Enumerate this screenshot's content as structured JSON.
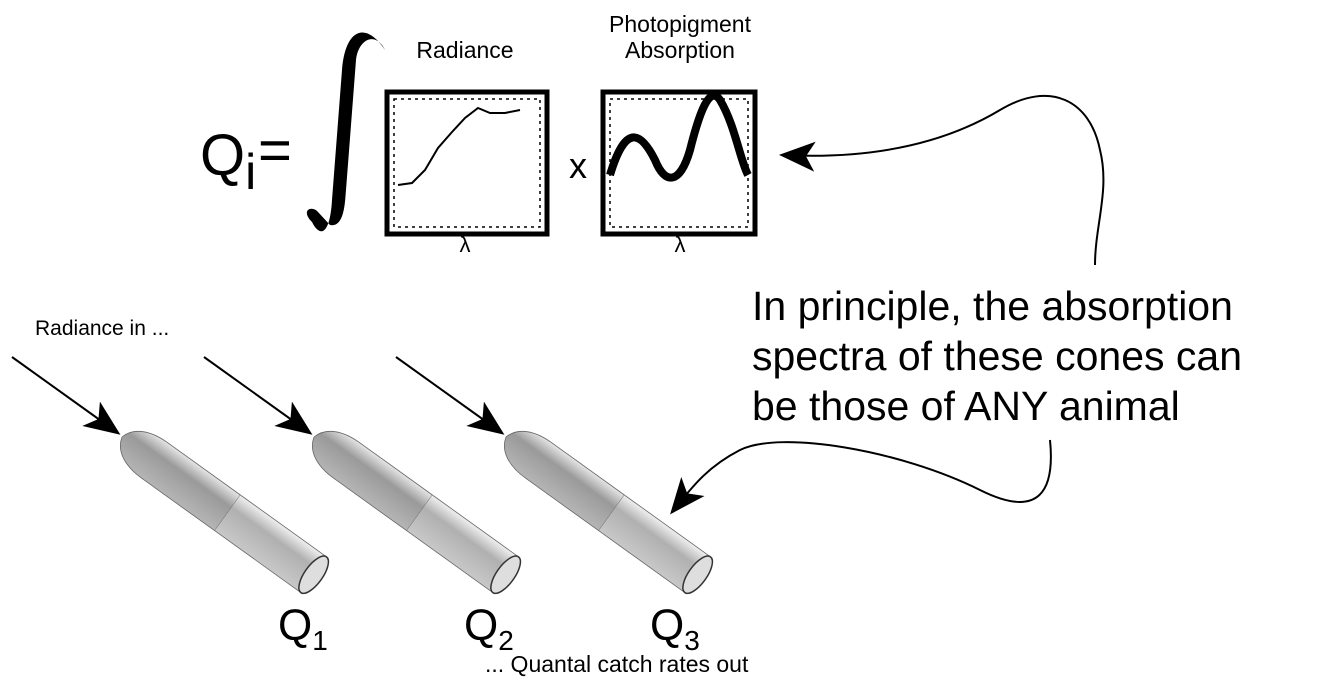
{
  "equation": {
    "lhs": "Q",
    "lhs_subscript": "i",
    "equals": "=",
    "operator": "x",
    "panels": [
      {
        "title": [
          "Radiance"
        ],
        "axis": "λ"
      },
      {
        "title": [
          "Photopigment",
          "Absorption"
        ],
        "axis": "λ"
      }
    ]
  },
  "note": {
    "lines": [
      "In principle, the absorption",
      "spectra of these cones can",
      "be those of ANY animal"
    ]
  },
  "cones": {
    "input_label": "Radiance in ...",
    "outputs": [
      {
        "symbol": "Q",
        "subscript": "1"
      },
      {
        "symbol": "Q",
        "subscript": "2"
      },
      {
        "symbol": "Q",
        "subscript": "3"
      }
    ],
    "output_label": "... Quantal catch rates out"
  }
}
